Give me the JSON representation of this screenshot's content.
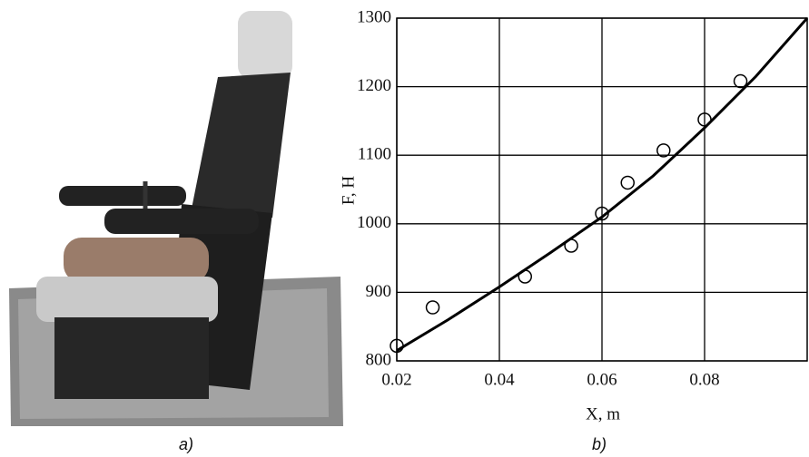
{
  "chart_data": {
    "type": "scatter",
    "xlabel": "X, m",
    "ylabel": "F, H",
    "xlim": [
      0.02,
      0.1
    ],
    "xticks": [
      0.02,
      0.04,
      0.06,
      0.08
    ],
    "ylim": [
      800,
      1300
    ],
    "yticks": [
      800,
      900,
      1000,
      1100,
      1200,
      1300
    ],
    "grid": true,
    "series": [
      {
        "type": "line",
        "color": "#000000",
        "x": [
          0.02,
          0.03,
          0.04,
          0.05,
          0.06,
          0.07,
          0.08,
          0.09,
          0.1
        ],
        "values": [
          815,
          860,
          908,
          958,
          1010,
          1070,
          1140,
          1215,
          1300
        ]
      },
      {
        "type": "scatter",
        "color": "#000000",
        "x": [
          0.02,
          0.027,
          0.045,
          0.054,
          0.06,
          0.065,
          0.072,
          0.08,
          0.087
        ],
        "values": [
          822,
          878,
          923,
          968,
          1015,
          1060,
          1107,
          1152,
          1208
        ]
      }
    ]
  },
  "captions": {
    "a": "a)",
    "b": "b)"
  }
}
